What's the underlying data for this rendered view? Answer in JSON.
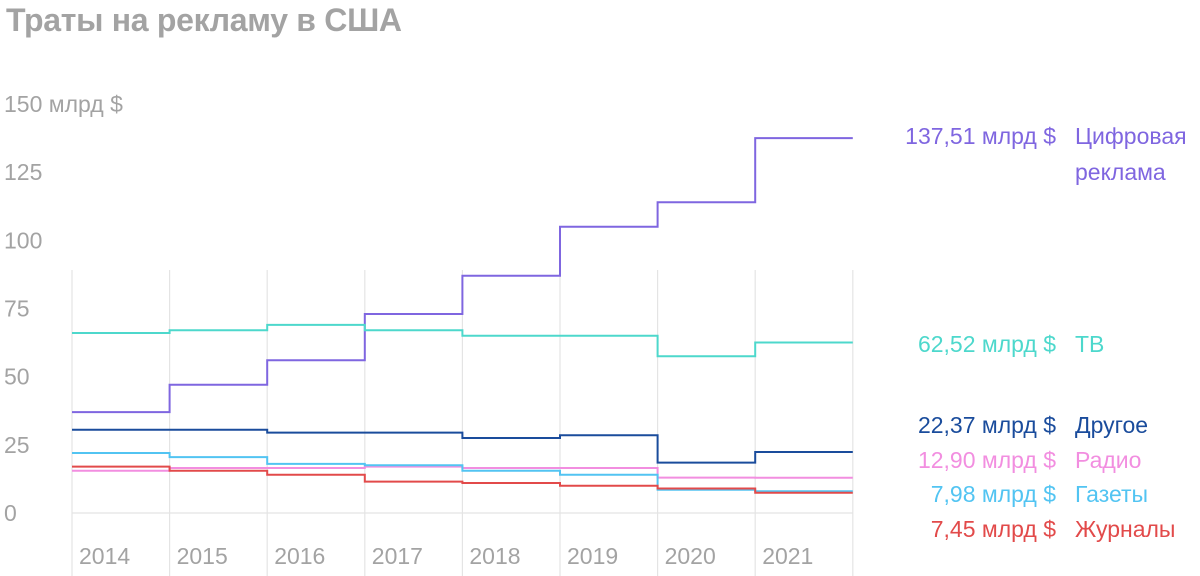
{
  "title": "Траты на рекламу в США",
  "chart_data": {
    "type": "line",
    "step": true,
    "title": "Траты на рекламу в США",
    "y_unit_label": "150 млрд $",
    "ylim": [
      0,
      150
    ],
    "y_ticks": [
      {
        "value": 150,
        "label": "150 млрд $"
      },
      {
        "value": 125,
        "label": "125"
      },
      {
        "value": 100,
        "label": "100"
      },
      {
        "value": 75,
        "label": "75"
      },
      {
        "value": 50,
        "label": "50"
      },
      {
        "value": 25,
        "label": "25"
      },
      {
        "value": 0,
        "label": "0"
      }
    ],
    "categories": [
      "2014",
      "2015",
      "2016",
      "2017",
      "2018",
      "2019",
      "2020",
      "2021"
    ],
    "grid": "vertical",
    "series": [
      {
        "name": "Цифровая реклама",
        "label_lines": [
          "Цифровая",
          "реклама"
        ],
        "value_label": "137,51 млрд $",
        "color": "#7f66e0",
        "values": [
          37,
          47,
          56,
          73,
          87,
          105,
          114,
          137.51
        ]
      },
      {
        "name": "ТВ",
        "label_lines": [
          "ТВ"
        ],
        "value_label": "62,52 млрд $",
        "color": "#4dd8cc",
        "values": [
          66,
          67,
          69,
          67,
          65,
          65,
          57.5,
          62.52
        ]
      },
      {
        "name": "Другое",
        "label_lines": [
          "Другое"
        ],
        "value_label": "22,37 млрд $",
        "color": "#1a4c9c",
        "values": [
          30.5,
          30.5,
          29.5,
          29.5,
          27.5,
          28.5,
          18.5,
          22.37
        ]
      },
      {
        "name": "Радио",
        "label_lines": [
          "Радио"
        ],
        "value_label": "12,90 млрд $",
        "color": "#f28ee0",
        "values": [
          15.5,
          16.5,
          16.5,
          17,
          16.5,
          16.5,
          13,
          12.9
        ]
      },
      {
        "name": "Газеты",
        "label_lines": [
          "Газеты"
        ],
        "value_label": "7,98 млрд $",
        "color": "#52c4f2",
        "values": [
          22,
          20.5,
          18,
          17.5,
          15.5,
          14,
          8.5,
          7.98
        ]
      },
      {
        "name": "Журналы",
        "label_lines": [
          "Журналы"
        ],
        "value_label": "7,45 млрд $",
        "color": "#e24a4a",
        "values": [
          17,
          15.5,
          14,
          11.5,
          11,
          10,
          9,
          7.45
        ]
      }
    ]
  }
}
